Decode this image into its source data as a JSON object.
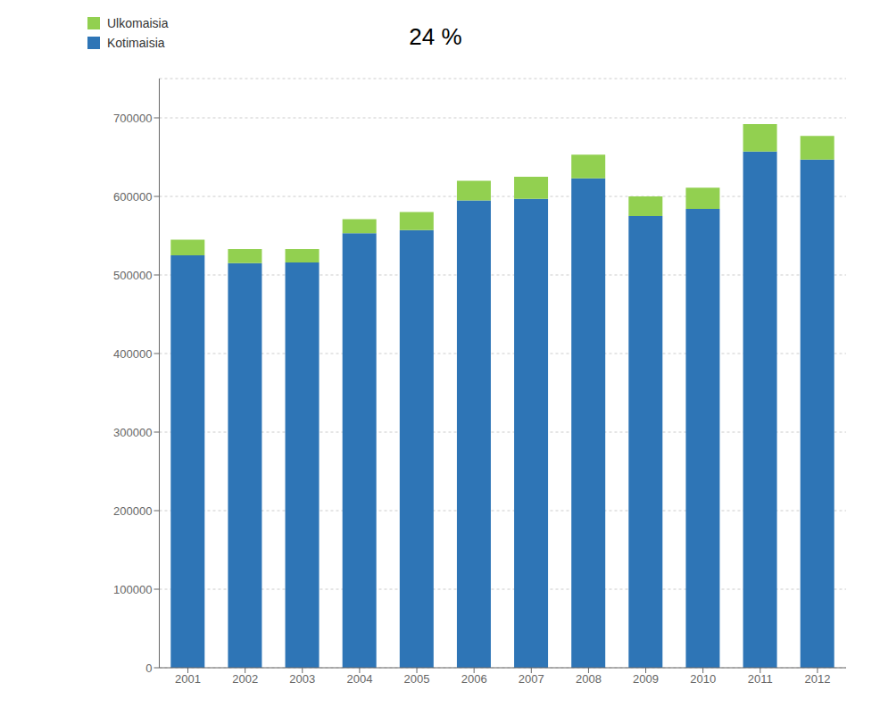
{
  "chart_data": {
    "type": "bar",
    "stacked": true,
    "categories": [
      "2001",
      "2002",
      "2003",
      "2004",
      "2005",
      "2006",
      "2007",
      "2008",
      "2009",
      "2010",
      "2011",
      "2012"
    ],
    "series": [
      {
        "name": "Kotimaisia",
        "color": "#2E75B6",
        "values": [
          525000,
          515000,
          516000,
          553000,
          557000,
          595000,
          597000,
          623000,
          575000,
          584000,
          657000,
          647000
        ]
      },
      {
        "name": "Ulkomaisia",
        "color": "#92D050",
        "values": [
          20000,
          18000,
          17000,
          18000,
          23000,
          25000,
          28000,
          30000,
          25000,
          27000,
          35000,
          30000
        ]
      }
    ],
    "ylim": [
      0,
      750000
    ],
    "yticks": [
      0,
      100000,
      200000,
      300000,
      400000,
      500000,
      600000,
      700000
    ],
    "grid": true,
    "legend": "upper left",
    "annotations": [
      "24 %"
    ]
  }
}
